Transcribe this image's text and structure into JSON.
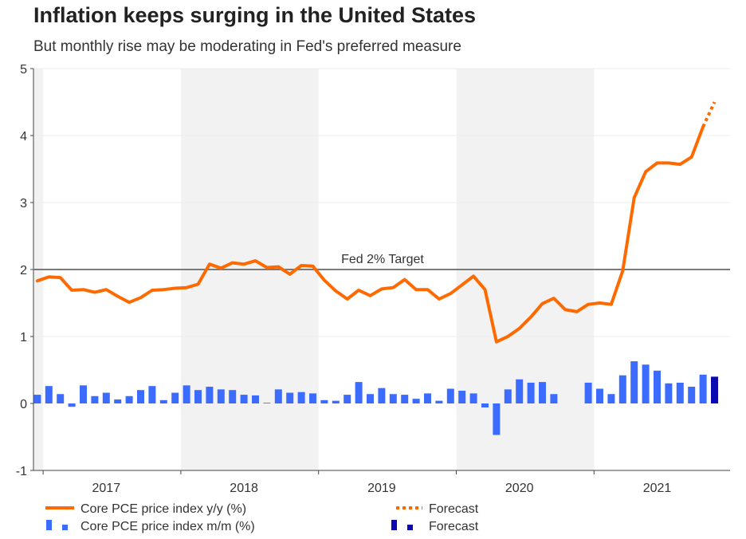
{
  "title": "Inflation keeps surging in the United States",
  "subtitle": "But monthly rise may be moderating in Fed's preferred measure",
  "colors": {
    "line": "#ff6a00",
    "bar": "#3b6cff",
    "bar_forecast": "#0a0ab0",
    "target": "#7a7a7a",
    "shade": "#f2f2f2"
  },
  "chart_data": {
    "type": "bar+line",
    "title": "Inflation keeps surging in the United States",
    "subtitle": "But monthly rise may be moderating in Fed's preferred measure",
    "ylim": [
      -1,
      5
    ],
    "yticks": [
      -1,
      0,
      1,
      2,
      3,
      4,
      5
    ],
    "ytick_labels": [
      "-1",
      "0",
      "1",
      "2",
      "3",
      "4",
      "5"
    ],
    "start": "2016-12",
    "years": [
      "2017",
      "2018",
      "2019",
      "2020",
      "2021"
    ],
    "target": {
      "value": 2,
      "label": "Fed 2% Target"
    },
    "series": [
      {
        "name": "Core PCE price index y/y (%)",
        "type": "line",
        "values": [
          1.83,
          1.89,
          1.88,
          1.69,
          1.7,
          1.66,
          1.7,
          1.6,
          1.51,
          1.58,
          1.69,
          1.7,
          1.72,
          1.73,
          1.78,
          2.08,
          2.02,
          2.1,
          2.08,
          2.13,
          2.03,
          2.04,
          1.93,
          2.06,
          2.05,
          1.84,
          1.68,
          1.56,
          1.69,
          1.61,
          1.71,
          1.73,
          1.85,
          1.7,
          1.7,
          1.56,
          1.64,
          1.77,
          1.9,
          1.7,
          0.92,
          1.0,
          1.12,
          1.29,
          1.49,
          1.57,
          1.4,
          1.37,
          1.48,
          1.5,
          1.48,
          1.98,
          3.07,
          3.46,
          3.59,
          3.59,
          3.57,
          3.68,
          4.13
        ]
      },
      {
        "name": "Forecast",
        "type": "line-dotted",
        "start_index": 58,
        "values": [
          4.13,
          4.5
        ]
      },
      {
        "name": "Core PCE price index m/m (%)",
        "type": "bar",
        "values": [
          0.13,
          0.26,
          0.14,
          -0.05,
          0.27,
          0.11,
          0.16,
          0.06,
          0.11,
          0.2,
          0.26,
          0.05,
          0.16,
          0.27,
          0.2,
          0.25,
          0.21,
          0.2,
          0.13,
          0.12,
          0.01,
          0.21,
          0.16,
          0.17,
          0.15,
          0.05,
          0.04,
          0.13,
          0.32,
          0.14,
          0.23,
          0.14,
          0.13,
          0.07,
          0.15,
          0.04,
          0.22,
          0.19,
          0.15,
          -0.06,
          -0.47,
          0.21,
          0.36,
          0.31,
          0.32,
          0.14,
          0.0,
          0.0,
          0.31,
          0.22,
          0.14,
          0.42,
          0.63,
          0.58,
          0.49,
          0.3,
          0.31,
          0.25,
          0.43
        ]
      },
      {
        "name": "Forecast",
        "type": "bar",
        "start_index": 59,
        "values": [
          0.4
        ]
      }
    ],
    "legend": [
      {
        "label": "Core PCE price index y/y (%)",
        "kind": "line"
      },
      {
        "label": "Forecast",
        "kind": "line-dotted"
      },
      {
        "label": "Core PCE price index m/m (%)",
        "kind": "bar"
      },
      {
        "label": "Forecast",
        "kind": "bar-forecast"
      }
    ]
  }
}
